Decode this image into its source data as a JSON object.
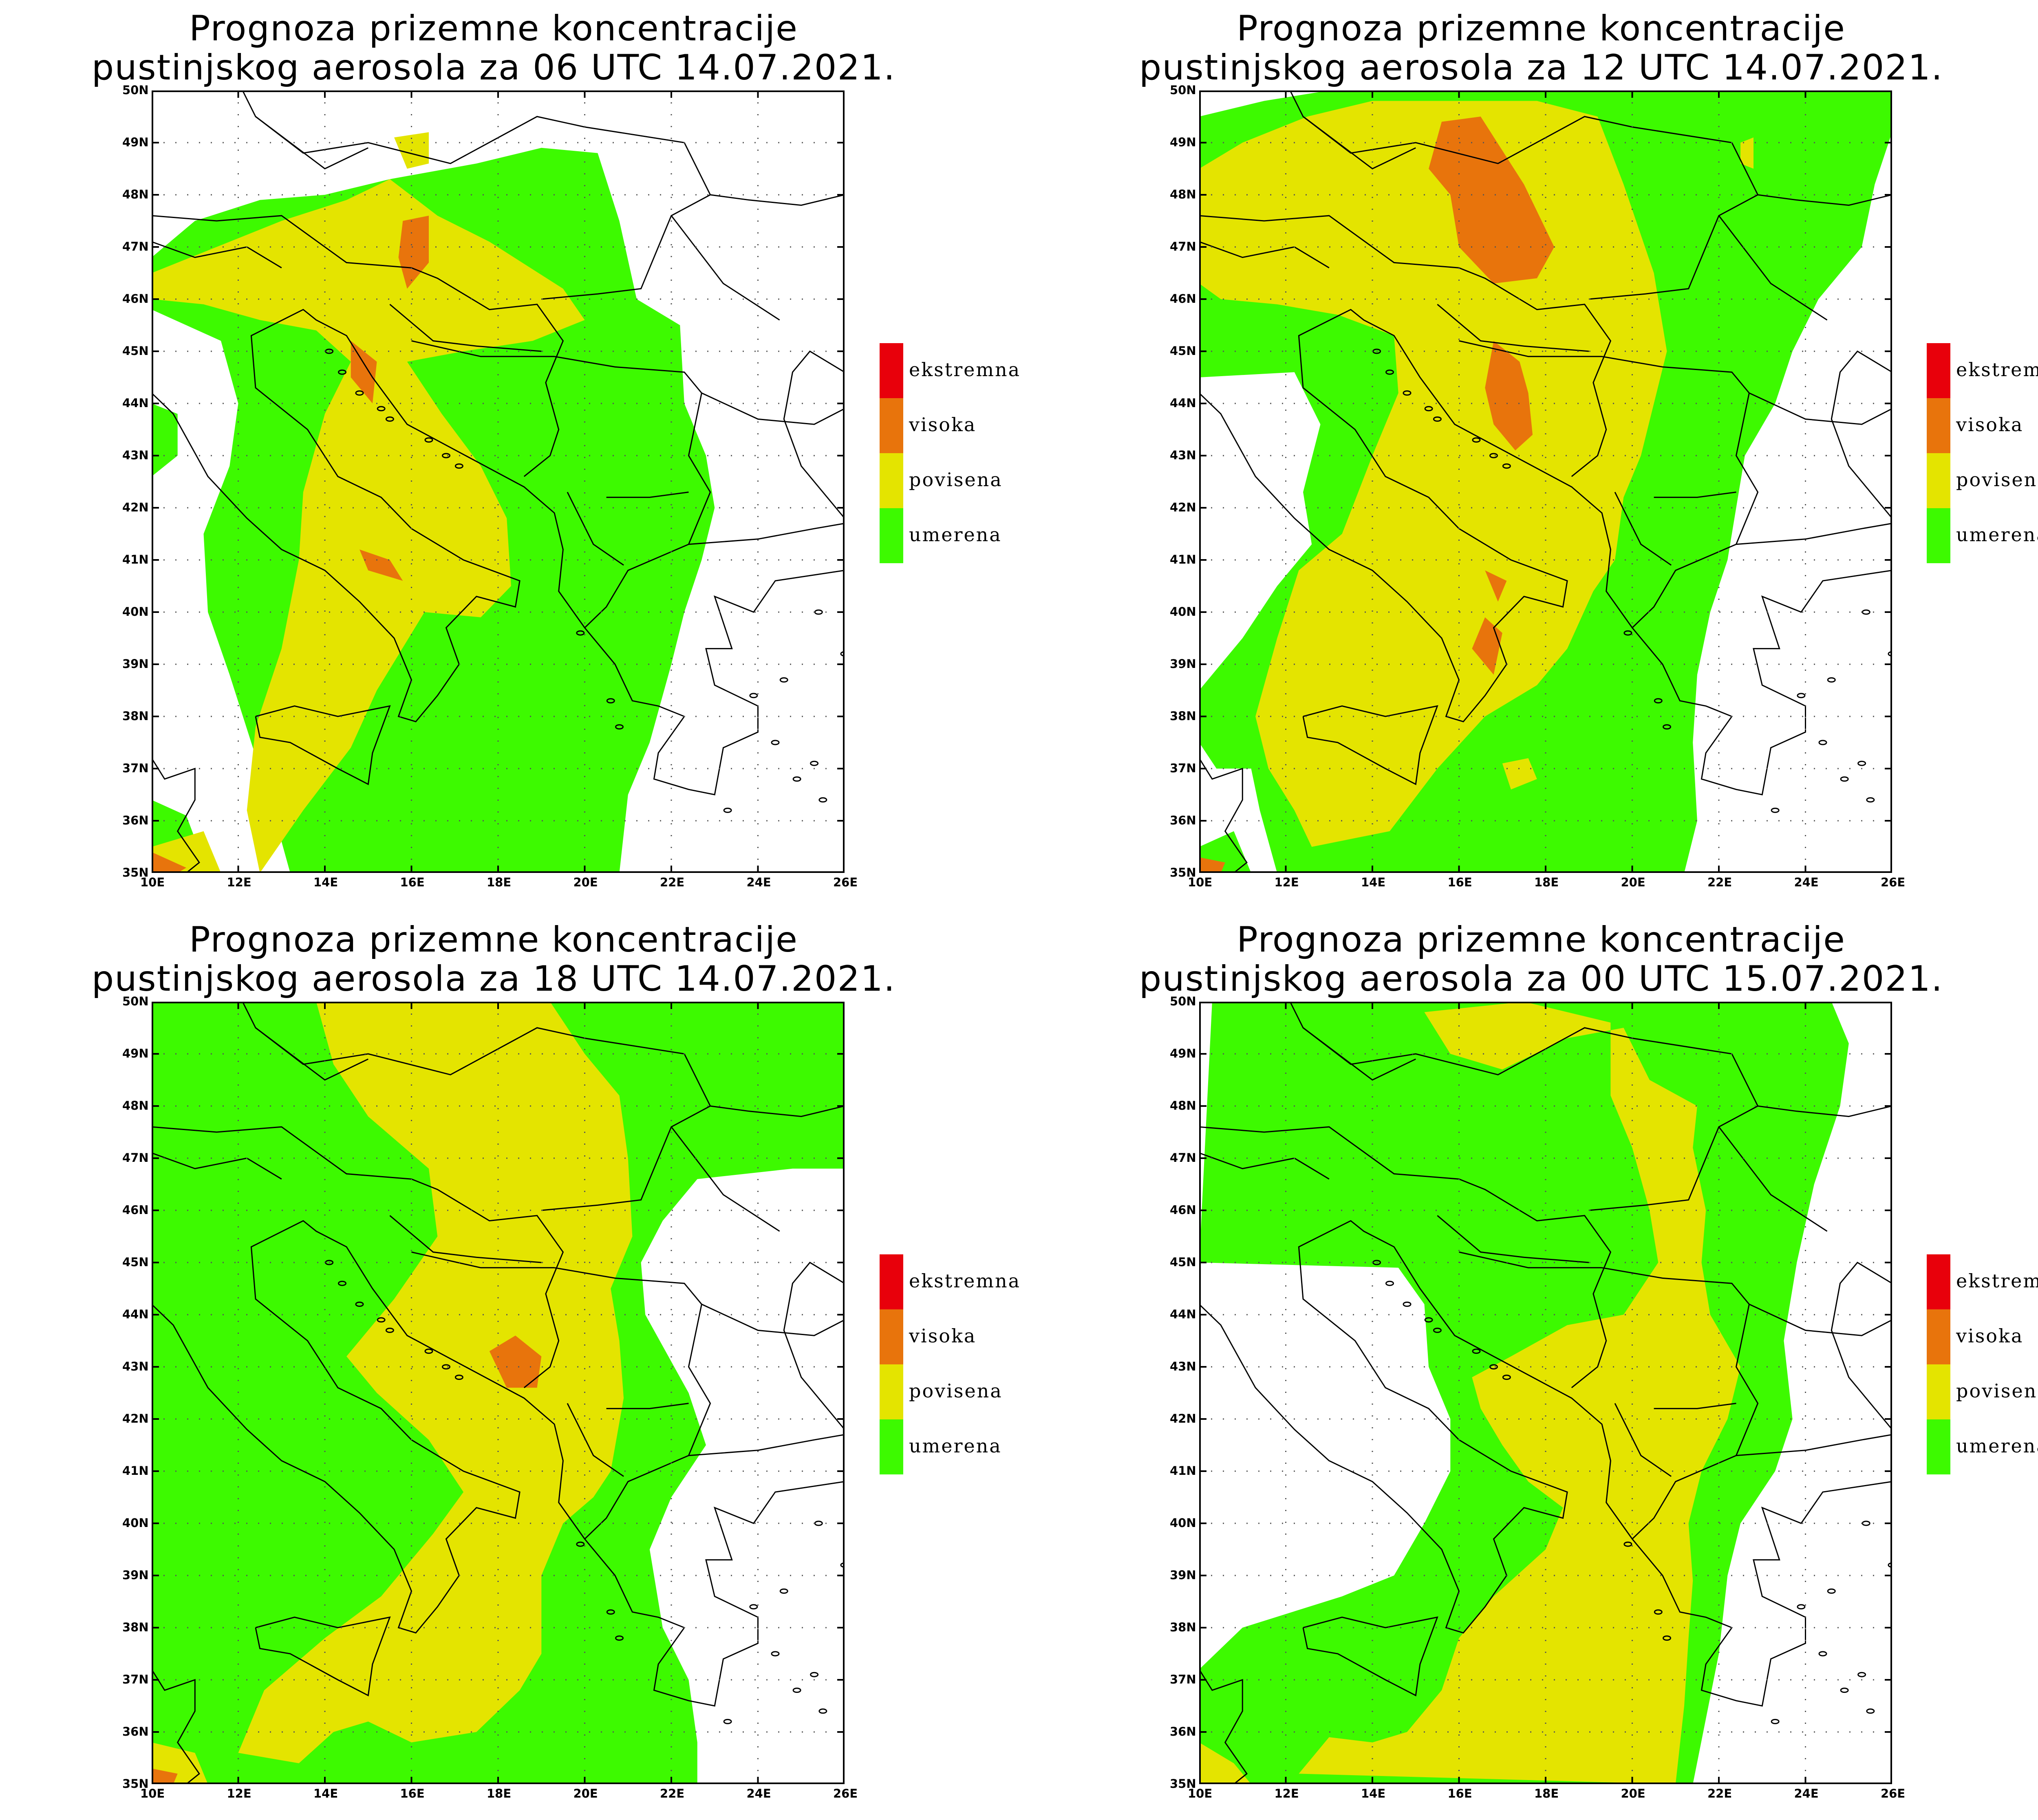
{
  "lon_ticks": [
    "10E",
    "12E",
    "14E",
    "16E",
    "18E",
    "20E",
    "22E",
    "24E",
    "26E"
  ],
  "lat_ticks": [
    "35N",
    "36N",
    "37N",
    "38N",
    "39N",
    "40N",
    "41N",
    "42N",
    "43N",
    "44N",
    "45N",
    "46N",
    "47N",
    "48N",
    "49N",
    "50N"
  ],
  "colors": {
    "ekstremna": "#e8000b",
    "visoka": "#e8740c",
    "povisena": "#e4e400",
    "umerena": "#3dfa00",
    "none": "#ffffff",
    "border": "#000000",
    "grid": "#555555"
  },
  "legend": [
    {
      "key": "ekstremna",
      "label": "ekstremna"
    },
    {
      "key": "visoka",
      "label": "visoka"
    },
    {
      "key": "povisena",
      "label": "povisena"
    },
    {
      "key": "umerena",
      "label": "umerena"
    }
  ],
  "panels": [
    {
      "title_line1": "Prognoza prizemne koncentracije",
      "title_line2": "pustinjskog aerosola za 06 UTC 14.07.2021.",
      "time": "06 UTC 14.07.2021"
    },
    {
      "title_line1": "Prognoza prizemne koncentracije",
      "title_line2": "pustinjskog aerosola za 12 UTC 14.07.2021.",
      "time": "12 UTC 14.07.2021"
    },
    {
      "title_line1": "Prognoza prizemne koncentracije",
      "title_line2": "pustinjskog aerosola za 18 UTC 14.07.2021.",
      "time": "18 UTC 14.07.2021"
    },
    {
      "title_line1": "Prognoza prizemne koncentracije",
      "title_line2": "pustinjskog aerosola za 00 UTC 15.07.2021.",
      "time": "00 UTC 15.07.2021"
    }
  ]
}
